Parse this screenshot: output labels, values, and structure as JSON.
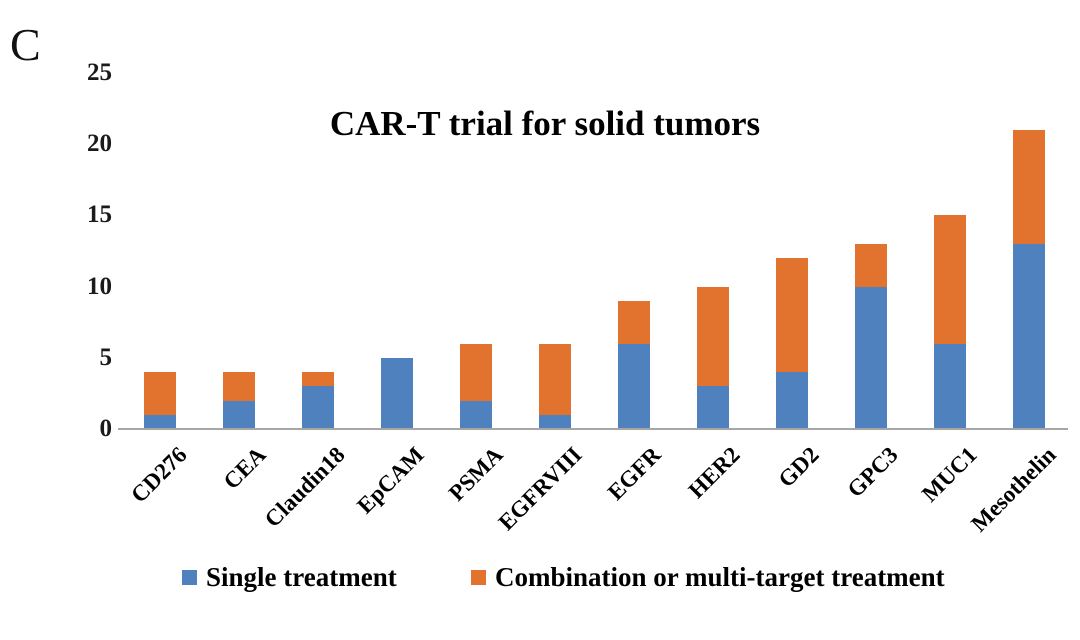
{
  "panel_label": "C",
  "chart_data": {
    "type": "bar",
    "stacked": true,
    "title": "CAR-T trial for solid tumors",
    "categories": [
      "CD276",
      "CEA",
      "Claudin18",
      "EpCAM",
      "PSMA",
      "EGFRVIII",
      "EGFR",
      "HER2",
      "GD2",
      "GPC3",
      "MUC1",
      "Mesothelin"
    ],
    "series": [
      {
        "name": "Single treatment",
        "color": "#4e81bd",
        "values": [
          1,
          2,
          3,
          5,
          2,
          1,
          6,
          3,
          4,
          10,
          6,
          13
        ]
      },
      {
        "name": "Combination or multi-target treatment",
        "color": "#e2732e",
        "values": [
          3,
          2,
          1,
          0,
          4,
          5,
          3,
          7,
          8,
          3,
          9,
          8
        ]
      }
    ],
    "totals": [
      4,
      4,
      4,
      5,
      6,
      6,
      9,
      10,
      12,
      13,
      15,
      21
    ],
    "xlabel": "",
    "ylabel": "",
    "ylim": [
      0,
      25
    ],
    "yticks": [
      0,
      5,
      10,
      15,
      20,
      25
    ],
    "grid": false,
    "legend_position": "bottom",
    "axis_line_color": "#a6a6a6",
    "background_color": "#ffffff"
  }
}
